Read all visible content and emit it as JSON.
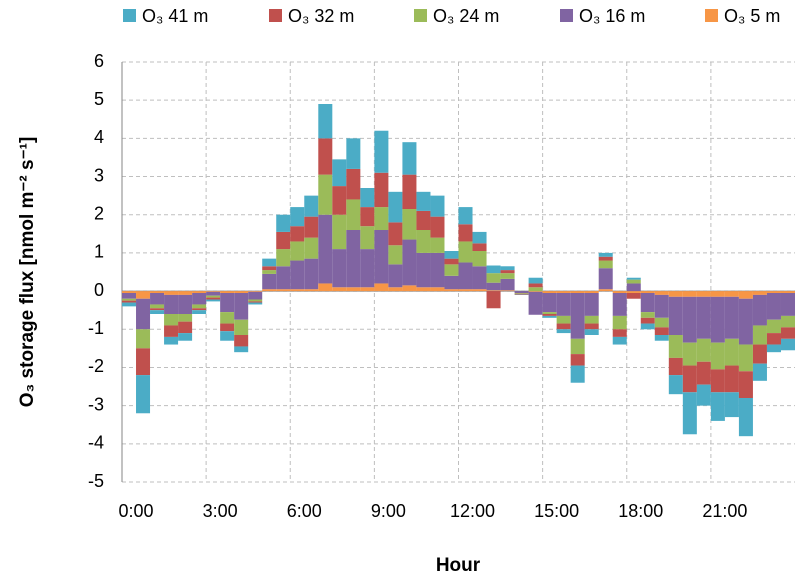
{
  "chart_data": {
    "type": "stacked_bar",
    "x_label": "Hour",
    "y_label": "O₃ storage flux [nmol m⁻² s⁻¹]",
    "categories": [
      "0:00",
      null,
      null,
      null,
      null,
      null,
      "3:00",
      null,
      null,
      null,
      null,
      null,
      "6:00",
      null,
      null,
      null,
      null,
      null,
      "9:00",
      null,
      null,
      null,
      null,
      null,
      "12:00",
      null,
      null,
      null,
      null,
      null,
      "15:00",
      null,
      null,
      null,
      null,
      null,
      "18:00",
      null,
      null,
      null,
      null,
      null,
      "21:00",
      null,
      null,
      null,
      null,
      null
    ],
    "ylim": [
      -5,
      6
    ],
    "yticks": [
      -5,
      -4,
      -3,
      -2,
      -1,
      0,
      1,
      2,
      3,
      4,
      5,
      6
    ],
    "grid": true,
    "legend": "top",
    "series": [
      {
        "name": "O₃ 41 m",
        "color": "#4bacc6",
        "values": [
          -0.1,
          -1.0,
          -0.1,
          -0.2,
          -0.2,
          -0.1,
          -0.05,
          -0.25,
          -0.15,
          -0.05,
          0.2,
          0.45,
          0.5,
          0.55,
          0.9,
          0.7,
          0.8,
          0.5,
          1.1,
          0.8,
          0.85,
          0.5,
          0.55,
          0.2,
          0.45,
          0.3,
          0.2,
          0.1,
          -0.01,
          0.15,
          -0.05,
          -0.1,
          -0.45,
          -0.15,
          0.1,
          -0.2,
          0.05,
          -0.15,
          -0.15,
          -0.5,
          -1.1,
          -0.55,
          -0.75,
          -0.65,
          -1.0,
          -0.45,
          -0.2,
          -0.3
        ]
      },
      {
        "name": "O₃ 32 m",
        "color": "#c0504d",
        "values": [
          -0.05,
          -0.7,
          -0.05,
          -0.3,
          -0.3,
          -0.05,
          -0.05,
          -0.2,
          -0.3,
          -0.03,
          0.1,
          0.45,
          0.4,
          0.55,
          0.95,
          0.75,
          0.8,
          0.5,
          0.9,
          0.6,
          0.9,
          0.5,
          0.55,
          0.15,
          0.45,
          0.2,
          -0.45,
          0.08,
          -0.02,
          0.1,
          -0.05,
          -0.15,
          -0.3,
          -0.15,
          0.1,
          -0.2,
          -0.15,
          -0.15,
          -0.2,
          -0.45,
          -0.7,
          -0.6,
          -0.6,
          -0.7,
          -0.7,
          -0.5,
          -0.3,
          -0.3
        ]
      },
      {
        "name": "O₃ 24 m",
        "color": "#9bbb59",
        "values": [
          -0.05,
          -0.5,
          -0.1,
          -0.3,
          -0.2,
          -0.1,
          -0.05,
          -0.3,
          -0.4,
          -0.05,
          0.1,
          0.45,
          0.5,
          0.55,
          1.05,
          0.9,
          0.8,
          0.6,
          0.6,
          0.5,
          0.8,
          0.6,
          0.4,
          0.3,
          0.55,
          0.4,
          0.25,
          0.15,
          -0.02,
          0.1,
          -0.05,
          -0.2,
          -0.4,
          -0.2,
          0.2,
          -0.35,
          0.1,
          -0.15,
          -0.25,
          -0.6,
          -0.6,
          -0.6,
          -0.7,
          -0.7,
          -0.7,
          -0.5,
          -0.35,
          -0.3
        ]
      },
      {
        "name": "O₃ 16 m",
        "color": "#8064a2",
        "values": [
          -0.15,
          -0.8,
          -0.3,
          -0.5,
          -0.5,
          -0.3,
          -0.1,
          -0.5,
          -0.7,
          -0.2,
          0.4,
          0.6,
          0.75,
          0.8,
          1.8,
          1.0,
          1.5,
          1.0,
          1.4,
          0.6,
          1.2,
          0.9,
          0.9,
          0.35,
          0.7,
          0.6,
          0.2,
          0.3,
          -0.05,
          -0.6,
          -0.5,
          -0.6,
          -1.2,
          -0.6,
          0.55,
          -0.6,
          0.2,
          -0.5,
          -0.6,
          -1.0,
          -1.2,
          -1.1,
          -1.2,
          -1.1,
          -1.2,
          -0.8,
          -0.7,
          -0.6
        ]
      },
      {
        "name": "O₃ 5 m",
        "color": "#f79646",
        "values": [
          -0.05,
          -0.2,
          -0.05,
          -0.1,
          -0.1,
          -0.05,
          -0.02,
          -0.05,
          -0.05,
          -0.02,
          0.05,
          0.05,
          0.05,
          0.05,
          0.2,
          0.1,
          0.1,
          0.1,
          0.2,
          0.1,
          0.15,
          0.1,
          0.1,
          0.05,
          0.05,
          0.05,
          0.02,
          0.02,
          0,
          -0.02,
          -0.05,
          -0.05,
          -0.05,
          -0.05,
          0.05,
          -0.05,
          -0.05,
          -0.05,
          -0.1,
          -0.15,
          -0.15,
          -0.15,
          -0.15,
          -0.15,
          -0.2,
          -0.1,
          -0.05,
          -0.05
        ]
      }
    ]
  }
}
